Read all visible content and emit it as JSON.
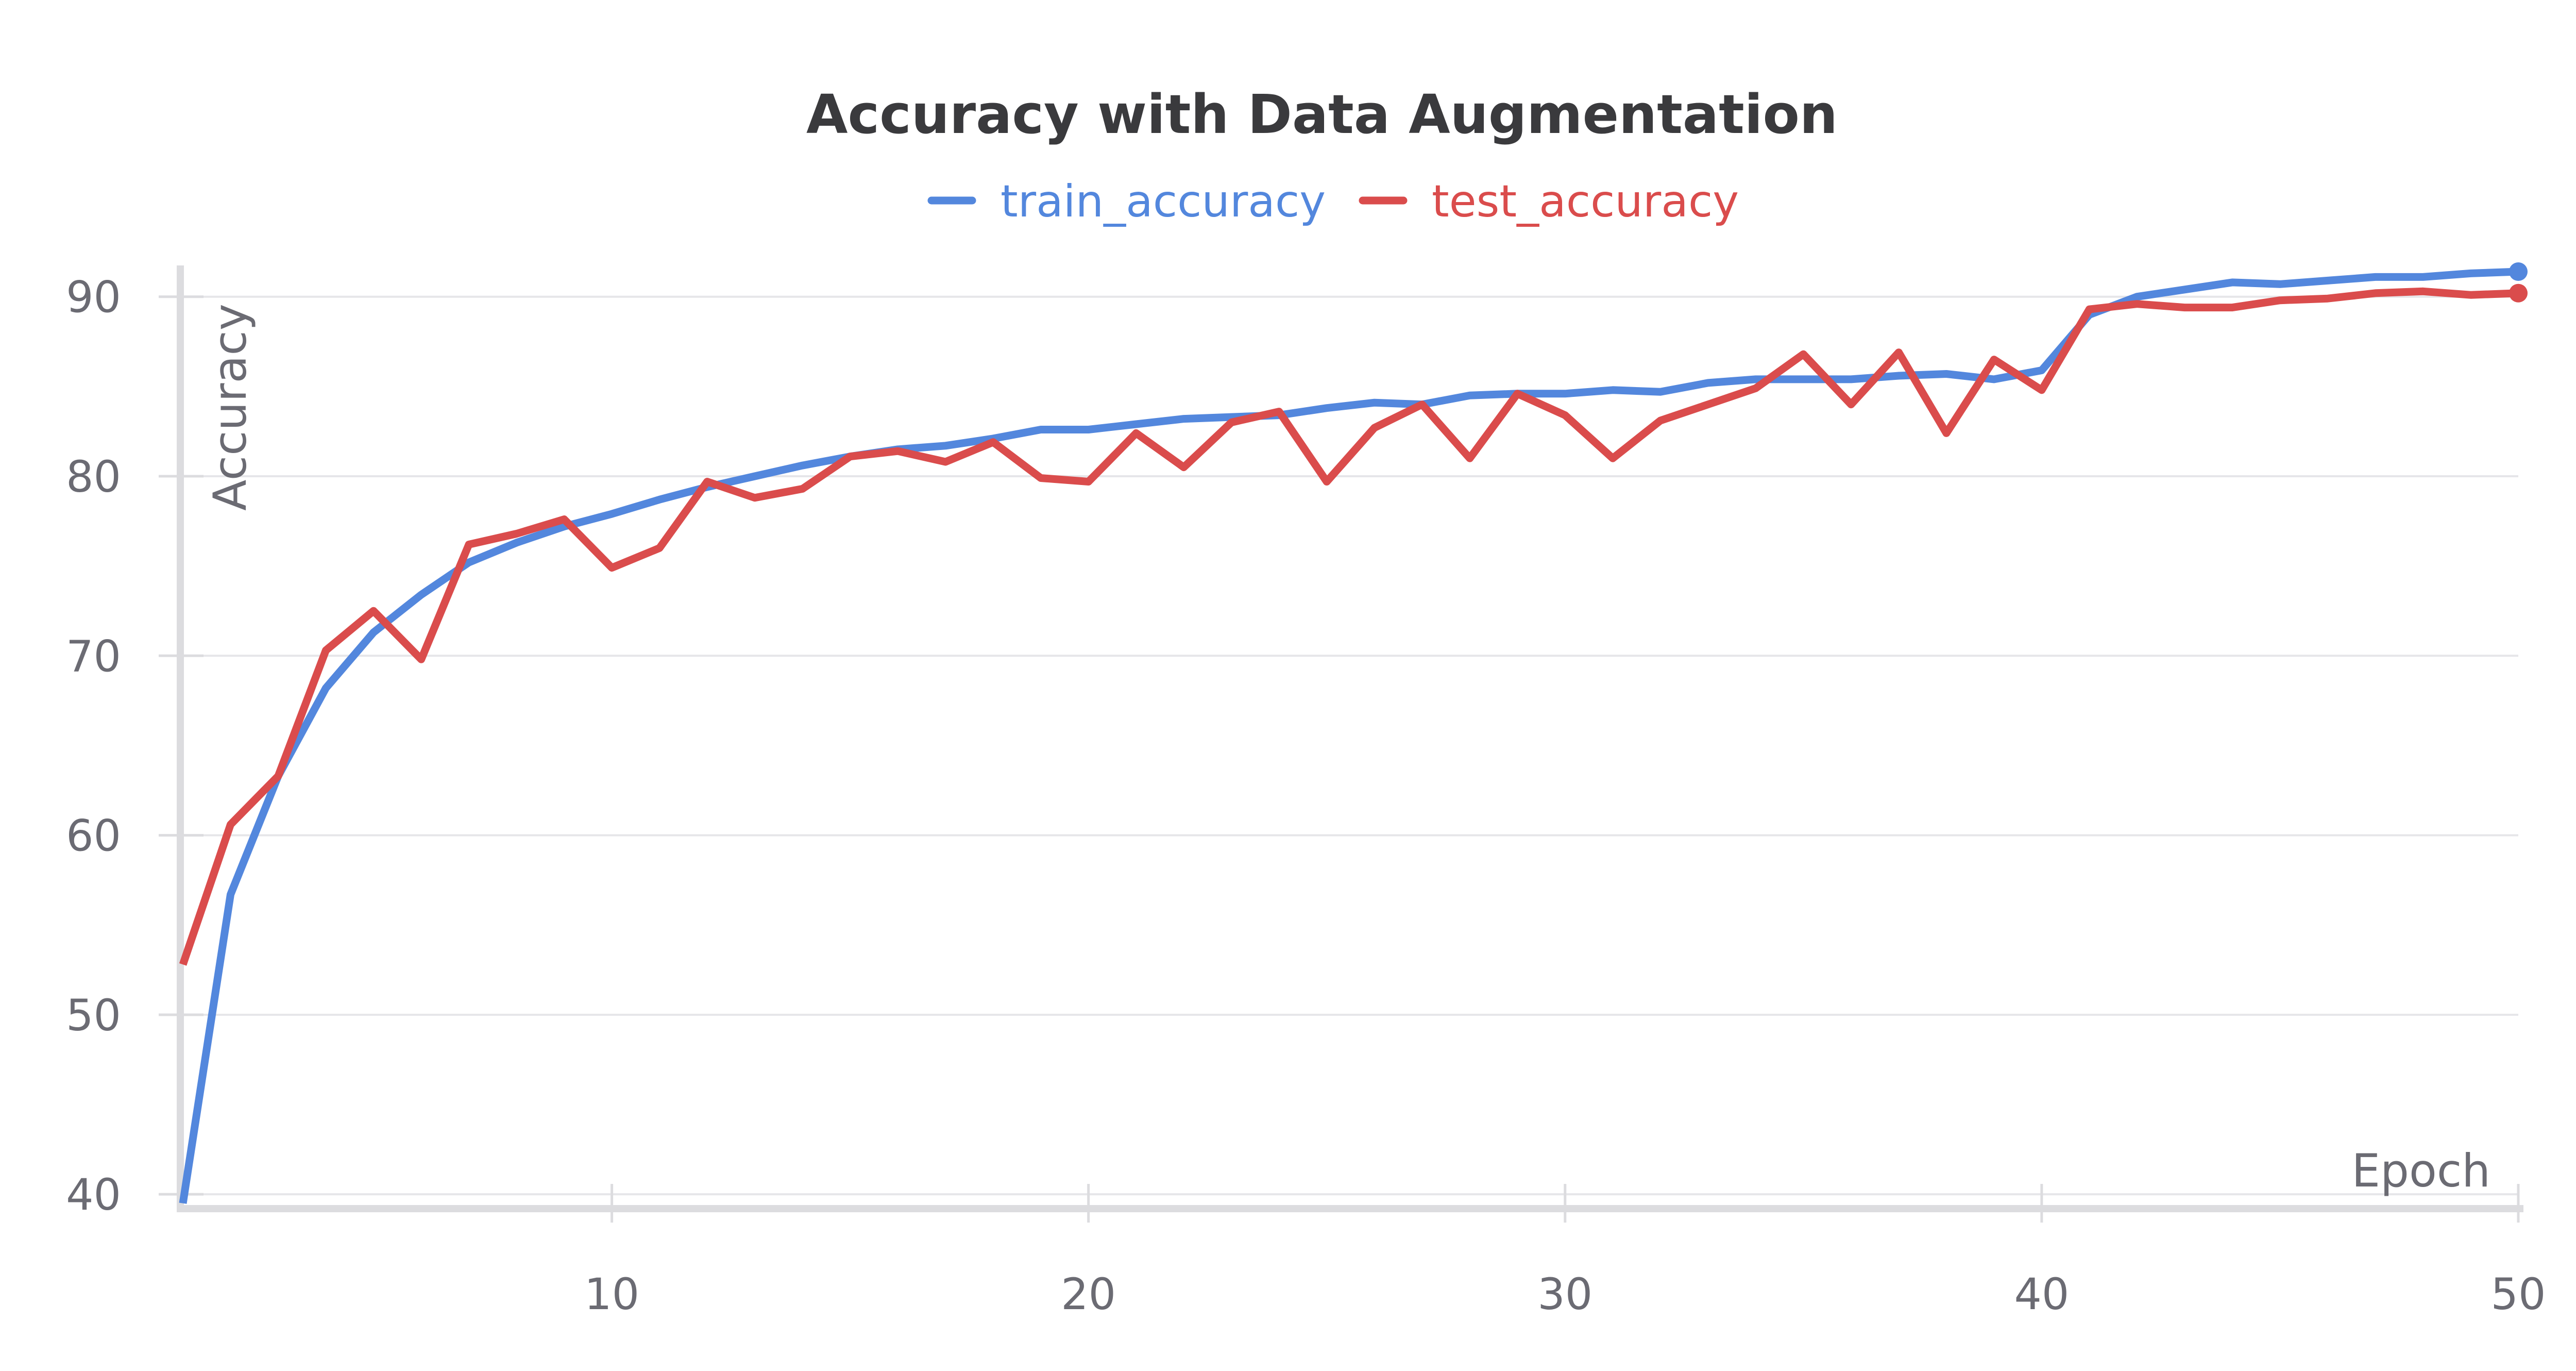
{
  "chart_data": {
    "type": "line",
    "title": "Accuracy with Data Augmentation",
    "xlabel": "Epoch",
    "ylabel": "Accuracy",
    "xlim": [
      1,
      50
    ],
    "ylim": [
      39.2,
      91.6
    ],
    "xticks": [
      10,
      20,
      30,
      40,
      50
    ],
    "yticks": [
      40,
      50,
      60,
      70,
      80,
      90
    ],
    "grid": "horizontal",
    "legend": "top-center",
    "series": [
      {
        "name": "train_accuracy",
        "color": "#5387dd",
        "x": [
          1,
          2,
          3,
          4,
          5,
          6,
          7,
          8,
          9,
          10,
          11,
          12,
          13,
          14,
          15,
          16,
          17,
          18,
          19,
          20,
          21,
          22,
          23,
          24,
          25,
          26,
          27,
          28,
          29,
          30,
          31,
          32,
          33,
          34,
          35,
          36,
          37,
          38,
          39,
          40,
          41,
          42,
          43,
          44,
          45,
          46,
          47,
          48,
          49,
          50
        ],
        "values": [
          39.5,
          56.7,
          63.3,
          68.2,
          71.3,
          73.4,
          75.2,
          76.3,
          77.2,
          77.9,
          78.7,
          79.4,
          80.0,
          80.6,
          81.1,
          81.5,
          81.7,
          82.1,
          82.6,
          82.6,
          82.9,
          83.2,
          83.3,
          83.4,
          83.8,
          84.1,
          84.0,
          84.5,
          84.6,
          84.6,
          84.8,
          84.7,
          85.2,
          85.4,
          85.4,
          85.4,
          85.6,
          85.7,
          85.4,
          85.9,
          89.0,
          90.0,
          90.4,
          90.8,
          90.7,
          90.9,
          91.1,
          91.1,
          91.3,
          91.4
        ]
      },
      {
        "name": "test_accuracy",
        "color": "#da4c4c",
        "x": [
          1,
          2,
          3,
          4,
          5,
          6,
          7,
          8,
          9,
          10,
          11,
          12,
          13,
          14,
          15,
          16,
          17,
          18,
          19,
          20,
          21,
          22,
          23,
          24,
          25,
          26,
          27,
          28,
          29,
          30,
          31,
          32,
          33,
          34,
          35,
          36,
          37,
          38,
          39,
          40,
          41,
          42,
          43,
          44,
          45,
          46,
          47,
          48,
          49,
          50
        ],
        "values": [
          52.8,
          60.6,
          63.3,
          70.3,
          72.5,
          69.8,
          76.2,
          76.8,
          77.6,
          74.9,
          76.0,
          79.7,
          78.8,
          79.3,
          81.1,
          81.4,
          80.8,
          81.9,
          79.9,
          79.7,
          82.4,
          80.5,
          83.0,
          83.6,
          79.7,
          82.7,
          84.0,
          81.0,
          84.6,
          83.4,
          81.0,
          83.1,
          84.0,
          84.9,
          86.8,
          84.0,
          86.9,
          82.4,
          86.5,
          84.8,
          89.3,
          89.6,
          89.4,
          89.4,
          89.8,
          89.9,
          90.2,
          90.3,
          90.1,
          90.2
        ]
      }
    ]
  }
}
